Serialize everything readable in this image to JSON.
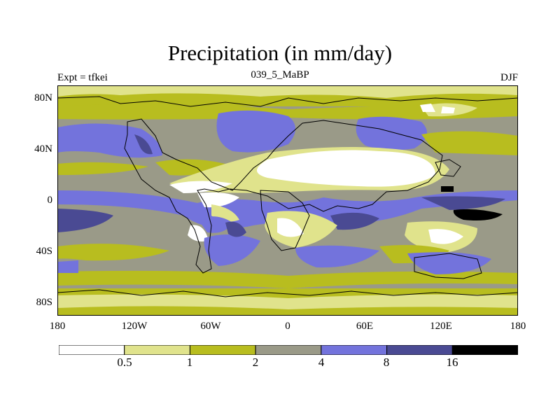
{
  "header": {
    "title": "Precipitation (in mm/day)",
    "left": "Expt = tfkei",
    "center": "039_5_MaBP",
    "right": "DJF"
  },
  "axes": {
    "lat_ticks": [
      "80N",
      "40N",
      "0",
      "40S",
      "80S"
    ],
    "lon_ticks": [
      "180",
      "120W",
      "60W",
      "0",
      "60E",
      "120E",
      "180"
    ]
  },
  "colorbar": {
    "colors": [
      "#ffffff",
      "#e0e38c",
      "#b8bd1f",
      "#9a9a88",
      "#7373dc",
      "#4a4a93",
      "#000000"
    ],
    "labels": [
      "0.5",
      "1",
      "2",
      "4",
      "8",
      "16"
    ]
  }
}
